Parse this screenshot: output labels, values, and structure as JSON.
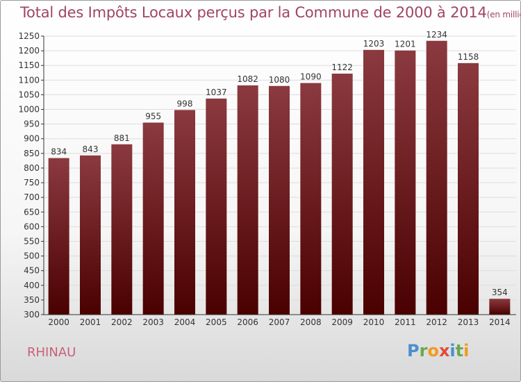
{
  "header": {
    "title": "Total des Impôts Locaux perçus par la Commune de 2000 à 2014",
    "unit": "(en milliers d'€)"
  },
  "commune": "RHINAU",
  "logo": {
    "text": "Proxiti",
    "letters": [
      "P",
      "r",
      "o",
      "x",
      "i",
      "t",
      "i"
    ],
    "colors": [
      "#4a90d0",
      "#6aa84f",
      "#f29b1d",
      "#e04b3a",
      "#4a90d0",
      "#6aa84f",
      "#f29b1d"
    ]
  },
  "chart_data": {
    "type": "bar",
    "title": "Total des Impôts Locaux perçus par la Commune de 2000 à 2014",
    "xlabel": "",
    "ylabel": "en milliers d'€",
    "categories": [
      "2000",
      "2001",
      "2002",
      "2003",
      "2004",
      "2005",
      "2006",
      "2007",
      "2008",
      "2009",
      "2010",
      "2011",
      "2012",
      "2013",
      "2014"
    ],
    "values": [
      834,
      843,
      881,
      955,
      998,
      1037,
      1082,
      1080,
      1090,
      1122,
      1203,
      1201,
      1234,
      1158,
      354
    ],
    "ylim": [
      300,
      1250
    ],
    "yticks": [
      300,
      350,
      400,
      450,
      500,
      550,
      600,
      650,
      700,
      750,
      800,
      850,
      900,
      950,
      1000,
      1050,
      1100,
      1150,
      1200,
      1250
    ],
    "grid": true,
    "bar_color_top": "#8b3a3f",
    "bar_color_bottom": "#4a0000",
    "grid_color": "#dddddd",
    "axis_color": "#333333"
  }
}
